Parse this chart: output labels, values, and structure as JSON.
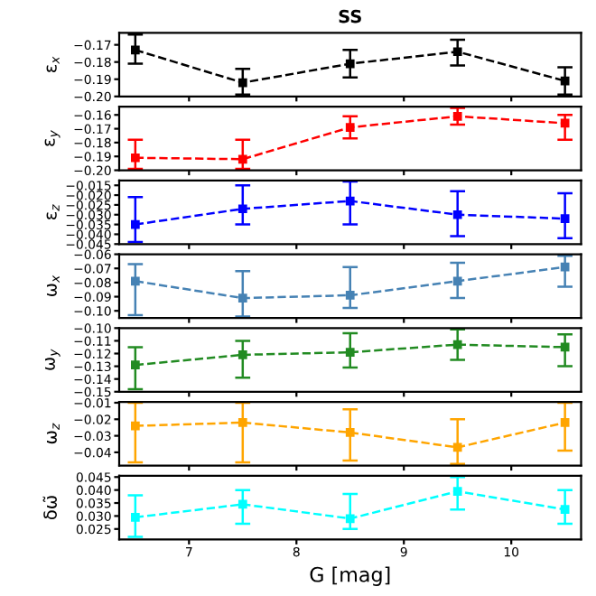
{
  "chart_data": [
    {
      "type": "line",
      "title": "SS",
      "ylabel": "ε$_{x}$",
      "x": [
        6.5,
        7.5,
        8.5,
        9.5,
        10.5
      ],
      "line_style": "dashed",
      "marker": "square",
      "tick_labels": "y",
      "xlim": [
        6.35,
        10.65
      ],
      "xticks": [
        7,
        8,
        9,
        10
      ],
      "ylim": [
        -0.2,
        -0.163
      ],
      "yticks": [
        {
          "value": -0.2,
          "label": "−0.20"
        },
        {
          "value": -0.19,
          "label": "−0.19"
        },
        {
          "value": -0.18,
          "label": "−0.18"
        },
        {
          "value": -0.17,
          "label": "−0.17"
        }
      ],
      "series": [
        {
          "color": "#000000",
          "values": [
            -0.173,
            -0.192,
            -0.181,
            -0.174,
            -0.191
          ],
          "errors": [
            [
              -0.181,
              -0.164
            ],
            [
              -0.199,
              -0.184
            ],
            [
              -0.189,
              -0.173
            ],
            [
              -0.182,
              -0.167
            ],
            [
              -0.199,
              -0.183
            ]
          ]
        }
      ]
    },
    {
      "type": "line",
      "ylabel": "ε$_{y}$",
      "x": [
        6.5,
        7.5,
        8.5,
        9.5,
        10.5
      ],
      "line_style": "dashed",
      "marker": "square",
      "tick_labels": "y",
      "xlim": [
        6.35,
        10.65
      ],
      "xticks": [
        7,
        8,
        9,
        10
      ],
      "ylim": [
        -0.2,
        -0.154
      ],
      "yticks": [
        {
          "value": -0.2,
          "label": "−0.20"
        },
        {
          "value": -0.19,
          "label": "−0.19"
        },
        {
          "value": -0.18,
          "label": "−0.18"
        },
        {
          "value": -0.17,
          "label": "−0.17"
        },
        {
          "value": -0.16,
          "label": "−0.16"
        }
      ],
      "series": [
        {
          "color": "#ff0000",
          "values": [
            -0.191,
            -0.192,
            -0.169,
            -0.161,
            -0.166
          ],
          "errors": [
            [
              -0.199,
              -0.178
            ],
            [
              -0.199,
              -0.178
            ],
            [
              -0.177,
              -0.161
            ],
            [
              -0.167,
              -0.155
            ],
            [
              -0.178,
              -0.16
            ]
          ]
        }
      ]
    },
    {
      "type": "line",
      "ylabel": "ε$_{z}$",
      "x": [
        6.5,
        7.5,
        8.5,
        9.5,
        10.5
      ],
      "line_style": "dashed",
      "marker": "square",
      "tick_labels": "y",
      "xlim": [
        6.35,
        10.65
      ],
      "xticks": [
        7,
        8,
        9,
        10
      ],
      "ylim": [
        -0.045,
        -0.0125
      ],
      "yticks": [
        {
          "value": -0.045,
          "label": "−0.045"
        },
        {
          "value": -0.04,
          "label": "−0.040"
        },
        {
          "value": -0.035,
          "label": "−0.035"
        },
        {
          "value": -0.03,
          "label": "−0.030"
        },
        {
          "value": -0.025,
          "label": "−0.025"
        },
        {
          "value": -0.02,
          "label": "−0.020"
        },
        {
          "value": -0.015,
          "label": "−0.015"
        }
      ],
      "series": [
        {
          "color": "#0000ff",
          "values": [
            -0.035,
            -0.027,
            -0.023,
            -0.03,
            -0.032
          ],
          "errors": [
            [
              -0.044,
              -0.021
            ],
            [
              -0.035,
              -0.015
            ],
            [
              -0.035,
              -0.013
            ],
            [
              -0.041,
              -0.018
            ],
            [
              -0.042,
              -0.019
            ]
          ]
        }
      ]
    },
    {
      "type": "line",
      "ylabel": "ω$_{x}$",
      "x": [
        6.5,
        7.5,
        8.5,
        9.5,
        10.5
      ],
      "line_style": "dashed",
      "marker": "square",
      "tick_labels": "y",
      "xlim": [
        6.35,
        10.65
      ],
      "xticks": [
        7,
        8,
        9,
        10
      ],
      "ylim": [
        -0.105,
        -0.06
      ],
      "yticks": [
        {
          "value": -0.1,
          "label": "−0.10"
        },
        {
          "value": -0.09,
          "label": "−0.09"
        },
        {
          "value": -0.08,
          "label": "−0.08"
        },
        {
          "value": -0.07,
          "label": "−0.07"
        },
        {
          "value": -0.06,
          "label": "−0.06"
        }
      ],
      "series": [
        {
          "color": "#4682b4",
          "values": [
            -0.079,
            -0.091,
            -0.089,
            -0.079,
            -0.069
          ],
          "errors": [
            [
              -0.103,
              -0.067
            ],
            [
              -0.104,
              -0.072
            ],
            [
              -0.098,
              -0.069
            ],
            [
              -0.091,
              -0.066
            ],
            [
              -0.083,
              -0.061
            ]
          ]
        }
      ]
    },
    {
      "type": "line",
      "ylabel": "ω$_{y}$",
      "x": [
        6.5,
        7.5,
        8.5,
        9.5,
        10.5
      ],
      "line_style": "dashed",
      "marker": "square",
      "tick_labels": "y",
      "xlim": [
        6.35,
        10.65
      ],
      "xticks": [
        7,
        8,
        9,
        10
      ],
      "ylim": [
        -0.15,
        -0.1
      ],
      "yticks": [
        {
          "value": -0.15,
          "label": "−0.15"
        },
        {
          "value": -0.14,
          "label": "−0.14"
        },
        {
          "value": -0.13,
          "label": "−0.13"
        },
        {
          "value": -0.12,
          "label": "−0.12"
        },
        {
          "value": -0.11,
          "label": "−0.11"
        },
        {
          "value": -0.1,
          "label": "−0.10"
        }
      ],
      "series": [
        {
          "color": "#228b22",
          "values": [
            -0.129,
            -0.121,
            -0.119,
            -0.113,
            -0.115
          ],
          "errors": [
            [
              -0.148,
              -0.115
            ],
            [
              -0.139,
              -0.11
            ],
            [
              -0.131,
              -0.104
            ],
            [
              -0.125,
              -0.101
            ],
            [
              -0.13,
              -0.105
            ]
          ]
        }
      ]
    },
    {
      "type": "line",
      "ylabel": "ω$_{z}$",
      "x": [
        6.5,
        7.5,
        8.5,
        9.5,
        10.5
      ],
      "line_style": "dashed",
      "marker": "square",
      "tick_labels": "y",
      "xlim": [
        6.35,
        10.65
      ],
      "xticks": [
        7,
        8,
        9,
        10
      ],
      "ylim": [
        -0.048,
        -0.0095
      ],
      "yticks": [
        {
          "value": -0.04,
          "label": "−0.04"
        },
        {
          "value": -0.03,
          "label": "−0.03"
        },
        {
          "value": -0.02,
          "label": "−0.02"
        },
        {
          "value": -0.01,
          "label": "−0.01"
        }
      ],
      "series": [
        {
          "color": "#ffa500",
          "values": [
            -0.024,
            -0.022,
            -0.028,
            -0.037,
            -0.022
          ],
          "errors": [
            [
              -0.046,
              -0.01
            ],
            [
              -0.046,
              -0.01
            ],
            [
              -0.045,
              -0.014
            ],
            [
              -0.047,
              -0.02
            ],
            [
              -0.039,
              -0.01
            ]
          ]
        }
      ]
    },
    {
      "type": "line",
      "ylabel": "δω̃",
      "xlabel": "G [mag]",
      "x": [
        6.5,
        7.5,
        8.5,
        9.5,
        10.5
      ],
      "line_style": "dashed",
      "marker": "square",
      "xlim": [
        6.35,
        10.65
      ],
      "xticks": [
        7,
        8,
        9,
        10
      ],
      "ylim": [
        0.021,
        0.0455
      ],
      "yticks": [
        {
          "value": 0.025,
          "label": "0.025"
        },
        {
          "value": 0.03,
          "label": "0.030"
        },
        {
          "value": 0.035,
          "label": "0.035"
        },
        {
          "value": 0.04,
          "label": "0.040"
        },
        {
          "value": 0.045,
          "label": "0.045"
        }
      ],
      "series": [
        {
          "color": "#00ffff",
          "values": [
            0.0295,
            0.0345,
            0.029,
            0.0395,
            0.0325
          ],
          "errors": [
            [
              0.022,
              0.038
            ],
            [
              0.027,
              0.04
            ],
            [
              0.025,
              0.0385
            ],
            [
              0.0325,
              0.045
            ],
            [
              0.027,
              0.04
            ]
          ]
        }
      ]
    }
  ]
}
